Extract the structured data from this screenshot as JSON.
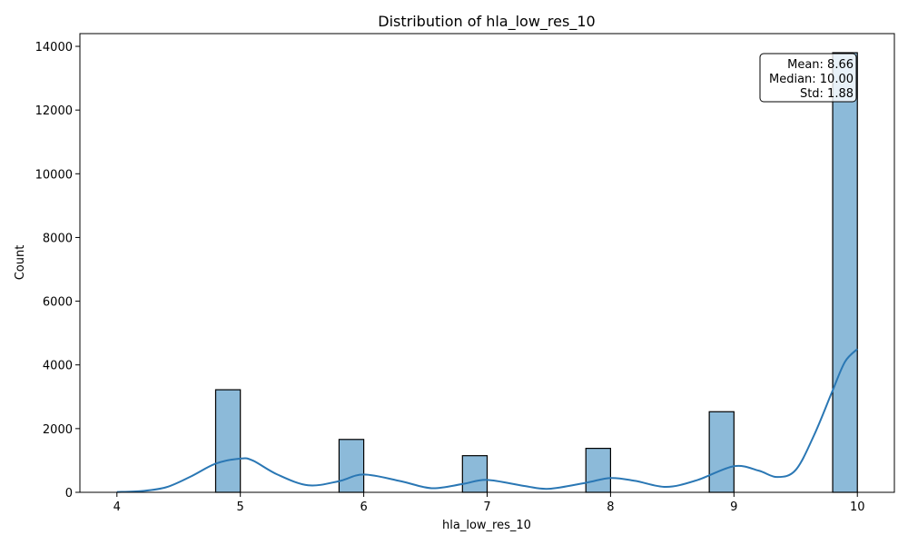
{
  "chart_data": {
    "type": "bar",
    "title": "Distribution of hla_low_res_10",
    "xlabel": "hla_low_res_10",
    "ylabel": "Count",
    "xlim": [
      3.7,
      10.3
    ],
    "ylim": [
      0,
      14400
    ],
    "x_ticks": [
      4,
      5,
      6,
      7,
      8,
      9,
      10
    ],
    "y_ticks": [
      0,
      2000,
      4000,
      6000,
      8000,
      10000,
      12000,
      14000
    ],
    "bin_width": 0.2,
    "bars": [
      {
        "x": 5,
        "count": 3220
      },
      {
        "x": 6,
        "count": 1660
      },
      {
        "x": 7,
        "count": 1150
      },
      {
        "x": 8,
        "count": 1380
      },
      {
        "x": 9,
        "count": 2530
      },
      {
        "x": 10,
        "count": 13800
      }
    ],
    "kde": {
      "x": [
        4.0,
        4.2,
        4.4,
        4.6,
        4.8,
        5.0,
        5.1,
        5.3,
        5.55,
        5.8,
        6.0,
        6.3,
        6.55,
        6.8,
        7.0,
        7.3,
        7.5,
        7.8,
        8.0,
        8.2,
        8.45,
        8.7,
        9.0,
        9.2,
        9.35,
        9.5,
        9.65,
        9.8,
        9.9,
        10.0
      ],
      "y": [
        10,
        40,
        160,
        500,
        900,
        1060,
        1000,
        560,
        220,
        350,
        560,
        350,
        130,
        260,
        390,
        200,
        110,
        300,
        450,
        360,
        170,
        380,
        820,
        680,
        480,
        700,
        1800,
        3200,
        4100,
        4500
      ]
    },
    "stats": {
      "mean": "Mean: 8.66",
      "median": "Median: 10.00",
      "std": "Std: 1.88"
    },
    "colors": {
      "bar_fill": "#8cbad9",
      "bar_edge": "#000000",
      "kde_line": "#2a77b4"
    }
  }
}
